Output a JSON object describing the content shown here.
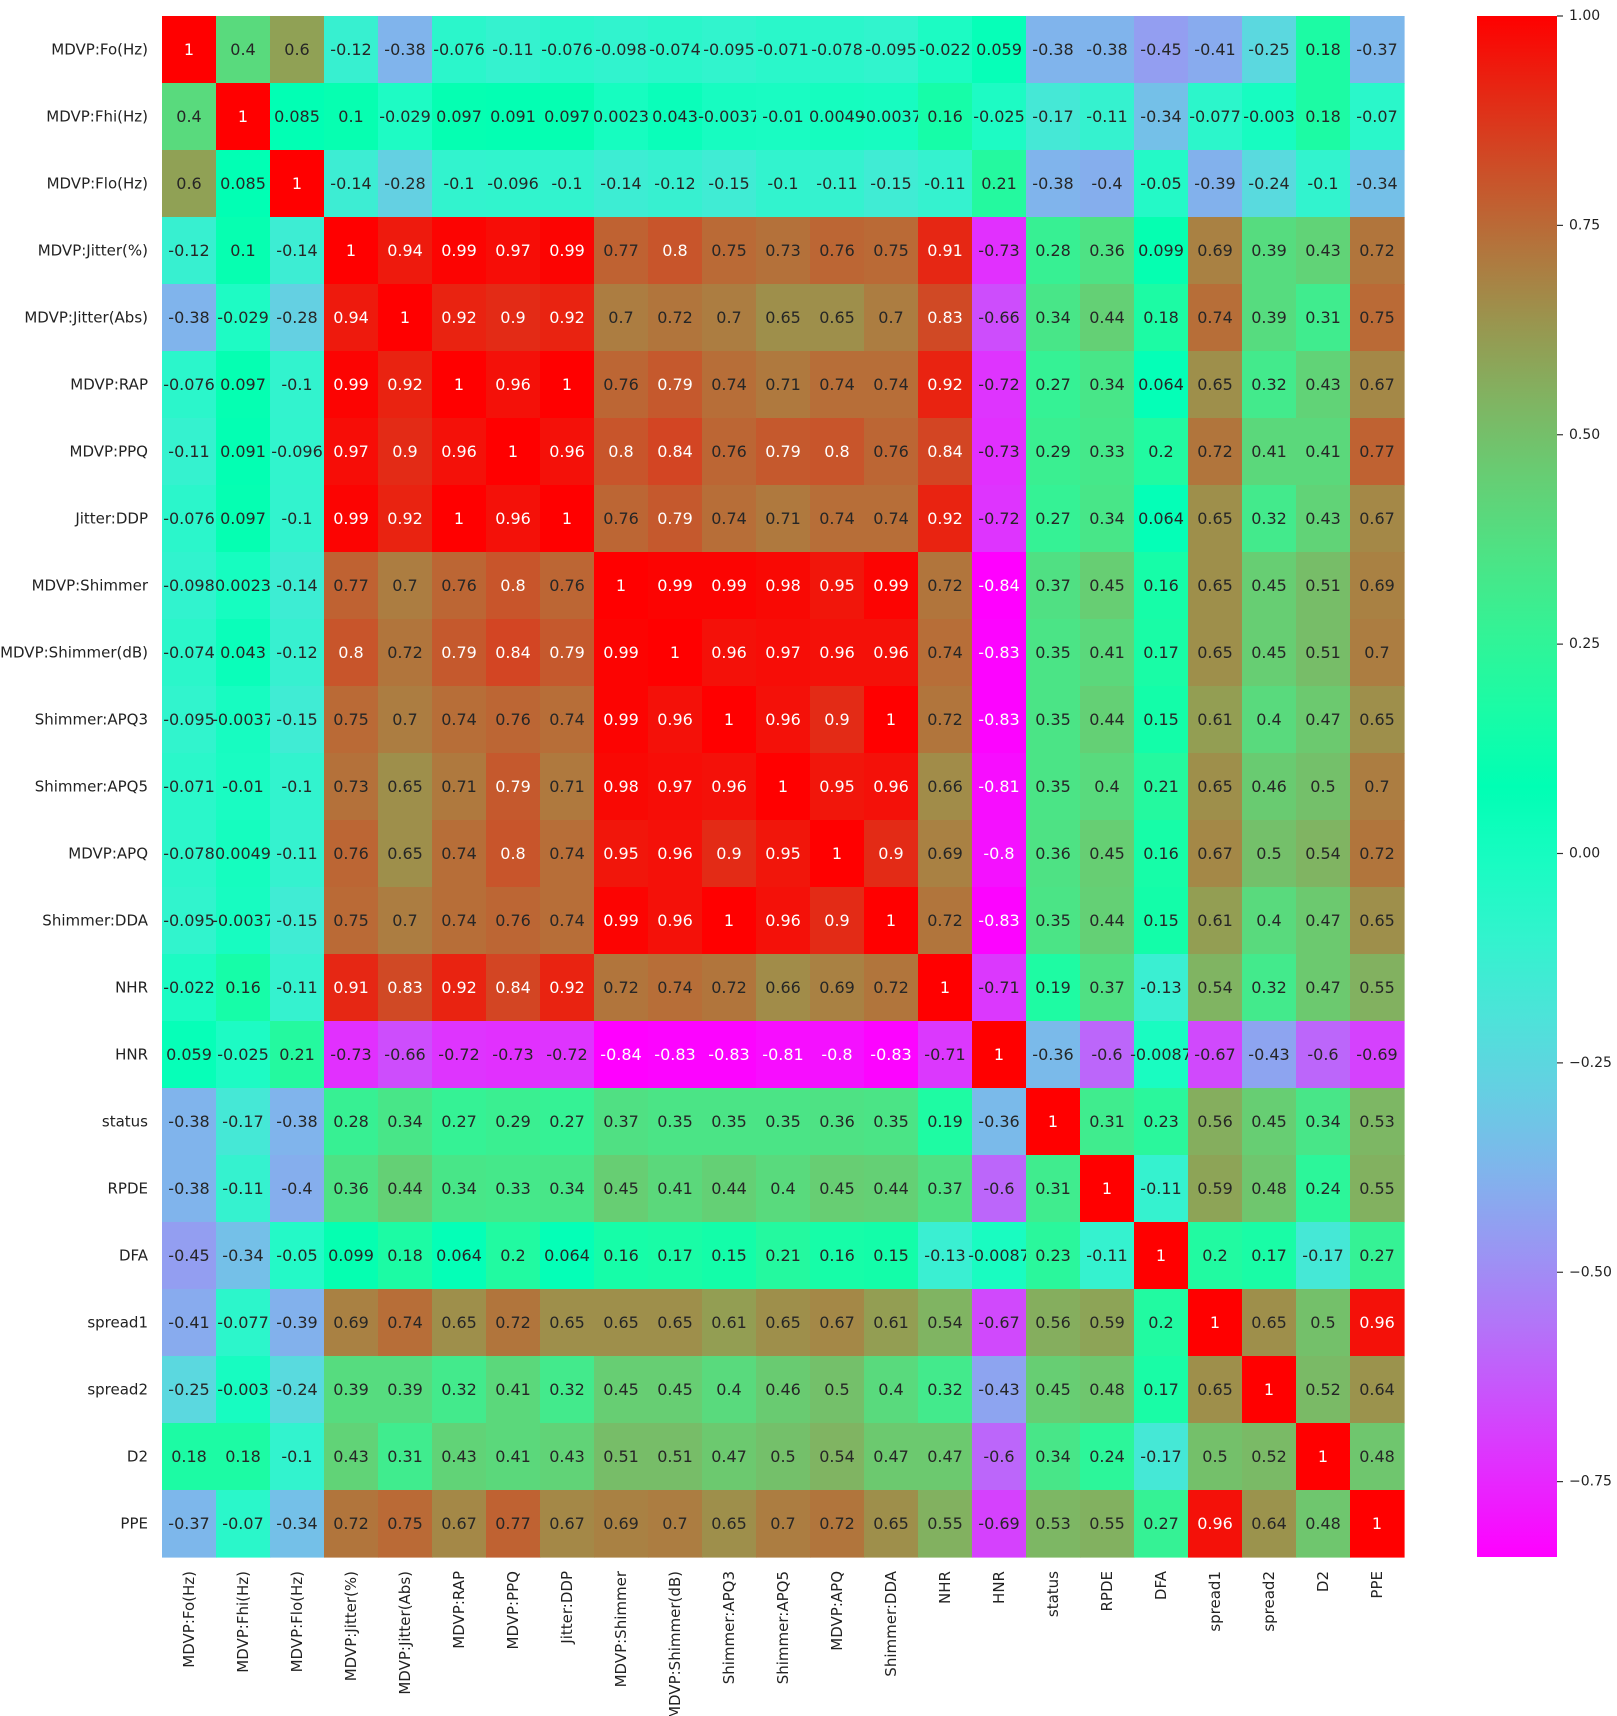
{
  "chart_data": {
    "type": "heatmap",
    "title": "",
    "xlabel": "",
    "ylabel": "",
    "colormap": "rainbow",
    "vmin": -0.84,
    "vmax": 1.0,
    "variables": [
      "MDVP:Fo(Hz)",
      "MDVP:Fhi(Hz)",
      "MDVP:Flo(Hz)",
      "MDVP:Jitter(%)",
      "MDVP:Jitter(Abs)",
      "MDVP:RAP",
      "MDVP:PPQ",
      "Jitter:DDP",
      "MDVP:Shimmer",
      "MDVP:Shimmer(dB)",
      "Shimmer:APQ3",
      "Shimmer:APQ5",
      "MDVP:APQ",
      "Shimmer:DDA",
      "NHR",
      "HNR",
      "status",
      "RPDE",
      "DFA",
      "spread1",
      "spread2",
      "D2",
      "PPE"
    ],
    "matrix": [
      [
        "1",
        "0.4",
        "0.6",
        "-0.12",
        "-0.38",
        "-0.076",
        "-0.11",
        "-0.076",
        "-0.098",
        "-0.074",
        "-0.095",
        "-0.071",
        "-0.078",
        "-0.095",
        "-0.022",
        "0.059",
        "-0.38",
        "-0.38",
        "-0.45",
        "-0.41",
        "-0.25",
        "0.18",
        "-0.37"
      ],
      [
        "0.4",
        "1",
        "0.085",
        "0.1",
        "-0.029",
        "0.097",
        "0.091",
        "0.097",
        "0.0023",
        "0.043",
        "-0.0037",
        "-0.01",
        "0.0049",
        "-0.0037",
        "0.16",
        "-0.025",
        "-0.17",
        "-0.11",
        "-0.34",
        "-0.077",
        "-0.003",
        "0.18",
        "-0.07"
      ],
      [
        "0.6",
        "0.085",
        "1",
        "-0.14",
        "-0.28",
        "-0.1",
        "-0.096",
        "-0.1",
        "-0.14",
        "-0.12",
        "-0.15",
        "-0.1",
        "-0.11",
        "-0.15",
        "-0.11",
        "0.21",
        "-0.38",
        "-0.4",
        "-0.05",
        "-0.39",
        "-0.24",
        "-0.1",
        "-0.34"
      ],
      [
        "-0.12",
        "0.1",
        "-0.14",
        "1",
        "0.94",
        "0.99",
        "0.97",
        "0.99",
        "0.77",
        "0.8",
        "0.75",
        "0.73",
        "0.76",
        "0.75",
        "0.91",
        "-0.73",
        "0.28",
        "0.36",
        "0.099",
        "0.69",
        "0.39",
        "0.43",
        "0.72"
      ],
      [
        "-0.38",
        "-0.029",
        "-0.28",
        "0.94",
        "1",
        "0.92",
        "0.9",
        "0.92",
        "0.7",
        "0.72",
        "0.7",
        "0.65",
        "0.65",
        "0.7",
        "0.83",
        "-0.66",
        "0.34",
        "0.44",
        "0.18",
        "0.74",
        "0.39",
        "0.31",
        "0.75"
      ],
      [
        "-0.076",
        "0.097",
        "-0.1",
        "0.99",
        "0.92",
        "1",
        "0.96",
        "1",
        "0.76",
        "0.79",
        "0.74",
        "0.71",
        "0.74",
        "0.74",
        "0.92",
        "-0.72",
        "0.27",
        "0.34",
        "0.064",
        "0.65",
        "0.32",
        "0.43",
        "0.67"
      ],
      [
        "-0.11",
        "0.091",
        "-0.096",
        "0.97",
        "0.9",
        "0.96",
        "1",
        "0.96",
        "0.8",
        "0.84",
        "0.76",
        "0.79",
        "0.8",
        "0.76",
        "0.84",
        "-0.73",
        "0.29",
        "0.33",
        "0.2",
        "0.72",
        "0.41",
        "0.41",
        "0.77"
      ],
      [
        "-0.076",
        "0.097",
        "-0.1",
        "0.99",
        "0.92",
        "1",
        "0.96",
        "1",
        "0.76",
        "0.79",
        "0.74",
        "0.71",
        "0.74",
        "0.74",
        "0.92",
        "-0.72",
        "0.27",
        "0.34",
        "0.064",
        "0.65",
        "0.32",
        "0.43",
        "0.67"
      ],
      [
        "-0.098",
        "0.0023",
        "-0.14",
        "0.77",
        "0.7",
        "0.76",
        "0.8",
        "0.76",
        "1",
        "0.99",
        "0.99",
        "0.98",
        "0.95",
        "0.99",
        "0.72",
        "-0.84",
        "0.37",
        "0.45",
        "0.16",
        "0.65",
        "0.45",
        "0.51",
        "0.69"
      ],
      [
        "-0.074",
        "0.043",
        "-0.12",
        "0.8",
        "0.72",
        "0.79",
        "0.84",
        "0.79",
        "0.99",
        "1",
        "0.96",
        "0.97",
        "0.96",
        "0.96",
        "0.74",
        "-0.83",
        "0.35",
        "0.41",
        "0.17",
        "0.65",
        "0.45",
        "0.51",
        "0.7"
      ],
      [
        "-0.095",
        "-0.0037",
        "-0.15",
        "0.75",
        "0.7",
        "0.74",
        "0.76",
        "0.74",
        "0.99",
        "0.96",
        "1",
        "0.96",
        "0.9",
        "1",
        "0.72",
        "-0.83",
        "0.35",
        "0.44",
        "0.15",
        "0.61",
        "0.4",
        "0.47",
        "0.65"
      ],
      [
        "-0.071",
        "-0.01",
        "-0.1",
        "0.73",
        "0.65",
        "0.71",
        "0.79",
        "0.71",
        "0.98",
        "0.97",
        "0.96",
        "1",
        "0.95",
        "0.96",
        "0.66",
        "-0.81",
        "0.35",
        "0.4",
        "0.21",
        "0.65",
        "0.46",
        "0.5",
        "0.7"
      ],
      [
        "-0.078",
        "0.0049",
        "-0.11",
        "0.76",
        "0.65",
        "0.74",
        "0.8",
        "0.74",
        "0.95",
        "0.96",
        "0.9",
        "0.95",
        "1",
        "0.9",
        "0.69",
        "-0.8",
        "0.36",
        "0.45",
        "0.16",
        "0.67",
        "0.5",
        "0.54",
        "0.72"
      ],
      [
        "-0.095",
        "-0.0037",
        "-0.15",
        "0.75",
        "0.7",
        "0.74",
        "0.76",
        "0.74",
        "0.99",
        "0.96",
        "1",
        "0.96",
        "0.9",
        "1",
        "0.72",
        "-0.83",
        "0.35",
        "0.44",
        "0.15",
        "0.61",
        "0.4",
        "0.47",
        "0.65"
      ],
      [
        "-0.022",
        "0.16",
        "-0.11",
        "0.91",
        "0.83",
        "0.92",
        "0.84",
        "0.92",
        "0.72",
        "0.74",
        "0.72",
        "0.66",
        "0.69",
        "0.72",
        "1",
        "-0.71",
        "0.19",
        "0.37",
        "-0.13",
        "0.54",
        "0.32",
        "0.47",
        "0.55"
      ],
      [
        "0.059",
        "-0.025",
        "0.21",
        "-0.73",
        "-0.66",
        "-0.72",
        "-0.73",
        "-0.72",
        "-0.84",
        "-0.83",
        "-0.83",
        "-0.81",
        "-0.8",
        "-0.83",
        "-0.71",
        "1",
        "-0.36",
        "-0.6",
        "-0.0087",
        "-0.67",
        "-0.43",
        "-0.6",
        "-0.69"
      ],
      [
        "-0.38",
        "-0.17",
        "-0.38",
        "0.28",
        "0.34",
        "0.27",
        "0.29",
        "0.27",
        "0.37",
        "0.35",
        "0.35",
        "0.35",
        "0.36",
        "0.35",
        "0.19",
        "-0.36",
        "1",
        "0.31",
        "0.23",
        "0.56",
        "0.45",
        "0.34",
        "0.53"
      ],
      [
        "-0.38",
        "-0.11",
        "-0.4",
        "0.36",
        "0.44",
        "0.34",
        "0.33",
        "0.34",
        "0.45",
        "0.41",
        "0.44",
        "0.4",
        "0.45",
        "0.44",
        "0.37",
        "-0.6",
        "0.31",
        "1",
        "-0.11",
        "0.59",
        "0.48",
        "0.24",
        "0.55"
      ],
      [
        "-0.45",
        "-0.34",
        "-0.05",
        "0.099",
        "0.18",
        "0.064",
        "0.2",
        "0.064",
        "0.16",
        "0.17",
        "0.15",
        "0.21",
        "0.16",
        "0.15",
        "-0.13",
        "-0.0087",
        "0.23",
        "-0.11",
        "1",
        "0.2",
        "0.17",
        "-0.17",
        "0.27"
      ],
      [
        "-0.41",
        "-0.077",
        "-0.39",
        "0.69",
        "0.74",
        "0.65",
        "0.72",
        "0.65",
        "0.65",
        "0.65",
        "0.61",
        "0.65",
        "0.67",
        "0.61",
        "0.54",
        "-0.67",
        "0.56",
        "0.59",
        "0.2",
        "1",
        "0.65",
        "0.5",
        "0.96"
      ],
      [
        "-0.25",
        "-0.003",
        "-0.24",
        "0.39",
        "0.39",
        "0.32",
        "0.41",
        "0.32",
        "0.45",
        "0.45",
        "0.4",
        "0.46",
        "0.5",
        "0.4",
        "0.32",
        "-0.43",
        "0.45",
        "0.48",
        "0.17",
        "0.65",
        "1",
        "0.52",
        "0.64"
      ],
      [
        "0.18",
        "0.18",
        "-0.1",
        "0.43",
        "0.31",
        "0.43",
        "0.41",
        "0.43",
        "0.51",
        "0.51",
        "0.47",
        "0.5",
        "0.54",
        "0.47",
        "0.47",
        "-0.6",
        "0.34",
        "0.24",
        "-0.17",
        "0.5",
        "0.52",
        "1",
        "0.48"
      ],
      [
        "-0.37",
        "-0.07",
        "-0.34",
        "0.72",
        "0.75",
        "0.67",
        "0.77",
        "0.67",
        "0.69",
        "0.7",
        "0.65",
        "0.7",
        "0.72",
        "0.65",
        "0.55",
        "-0.69",
        "0.53",
        "0.55",
        "0.27",
        "0.96",
        "0.64",
        "0.48",
        "1"
      ]
    ],
    "colorbar": {
      "ticks": [
        1.0,
        0.75,
        0.5,
        0.25,
        0.0,
        -0.25,
        -0.5,
        -0.75
      ],
      "tick_labels": [
        "1.00",
        "0.75",
        "0.50",
        "0.25",
        "0.00",
        "−0.25",
        "−0.50",
        "−0.75"
      ]
    }
  }
}
